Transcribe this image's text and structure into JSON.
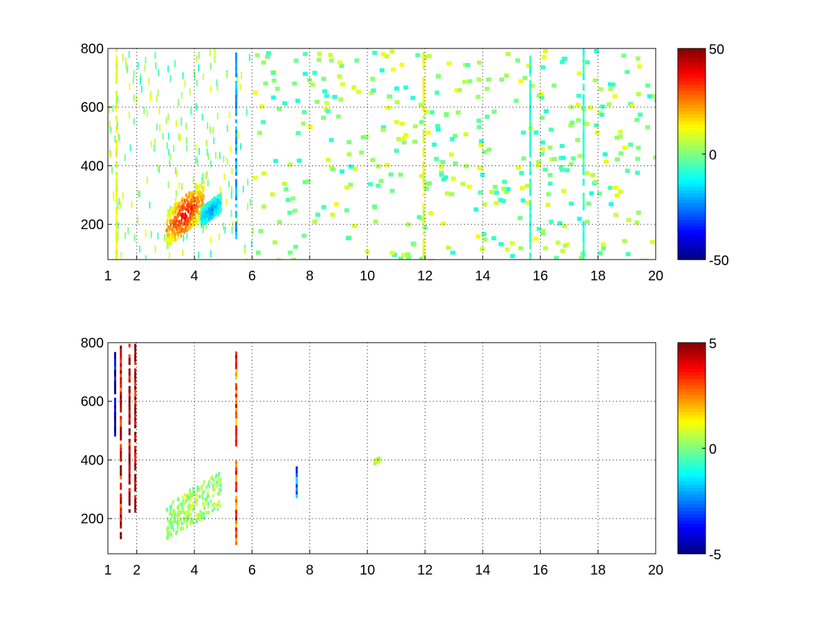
{
  "chart_data": [
    {
      "type": "heatmap",
      "title": "",
      "xlabel": "",
      "ylabel": "",
      "xlim": [
        1,
        20
      ],
      "ylim": [
        80,
        800
      ],
      "x_ticks": [
        "1",
        "2",
        "4",
        "6",
        "8",
        "10",
        "12",
        "14",
        "16",
        "18",
        "20"
      ],
      "y_ticks": [
        "200",
        "400",
        "600",
        "800"
      ],
      "grid": true,
      "colormap": "jet",
      "colorbar": {
        "min": -50,
        "max": 50,
        "ticks": [
          "50",
          "0",
          "-50"
        ]
      },
      "features": [
        {
          "kind": "blob",
          "x_range": [
            3.0,
            4.3
          ],
          "y_range": [
            150,
            330
          ],
          "value": 40
        },
        {
          "kind": "blob",
          "x_range": [
            4.2,
            4.9
          ],
          "y_range": [
            210,
            300
          ],
          "value": -25
        },
        {
          "kind": "band",
          "x": 1.3,
          "y_range": [
            80,
            800
          ],
          "value": 10
        },
        {
          "kind": "band",
          "x": 5.45,
          "y_range": [
            150,
            780
          ],
          "value": -20
        },
        {
          "kind": "band",
          "x": 11.95,
          "y_range": [
            80,
            800
          ],
          "value": 10
        },
        {
          "kind": "band",
          "x": 15.65,
          "y_range": [
            80,
            800
          ],
          "value": -8
        },
        {
          "kind": "band",
          "x": 17.5,
          "y_range": [
            80,
            800
          ],
          "value": -8
        }
      ]
    },
    {
      "type": "heatmap",
      "title": "",
      "xlabel": "",
      "ylabel": "",
      "xlim": [
        1,
        20
      ],
      "ylim": [
        80,
        800
      ],
      "x_ticks": [
        "1",
        "2",
        "4",
        "6",
        "8",
        "10",
        "12",
        "14",
        "16",
        "18",
        "20"
      ],
      "y_ticks": [
        "200",
        "400",
        "600",
        "800"
      ],
      "grid": true,
      "colormap": "jet",
      "colorbar": {
        "min": -5,
        "max": 5,
        "ticks": [
          "5",
          "0",
          "-5"
        ]
      },
      "features": [
        {
          "kind": "blob",
          "x_range": [
            3.0,
            4.9
          ],
          "y_range": [
            160,
            340
          ],
          "value": 0.5
        },
        {
          "kind": "band",
          "x": 5.45,
          "y_range": [
            110,
            760
          ],
          "value": 3
        },
        {
          "kind": "band",
          "x": 1.25,
          "y_range": [
            480,
            760
          ],
          "value": -4.5
        },
        {
          "kind": "band",
          "x": 1.45,
          "y_range": [
            130,
            790
          ],
          "value": 4
        },
        {
          "kind": "band",
          "x": 1.75,
          "y_range": [
            220,
            790
          ],
          "value": 4.5
        },
        {
          "kind": "band",
          "x": 1.95,
          "y_range": [
            220,
            790
          ],
          "value": 4.5
        },
        {
          "kind": "band",
          "x": 7.55,
          "y_range": [
            270,
            370
          ],
          "value": -3
        },
        {
          "kind": "blob",
          "x_range": [
            10.2,
            10.4
          ],
          "y_range": [
            395,
            410
          ],
          "value": 1.5
        }
      ]
    }
  ]
}
